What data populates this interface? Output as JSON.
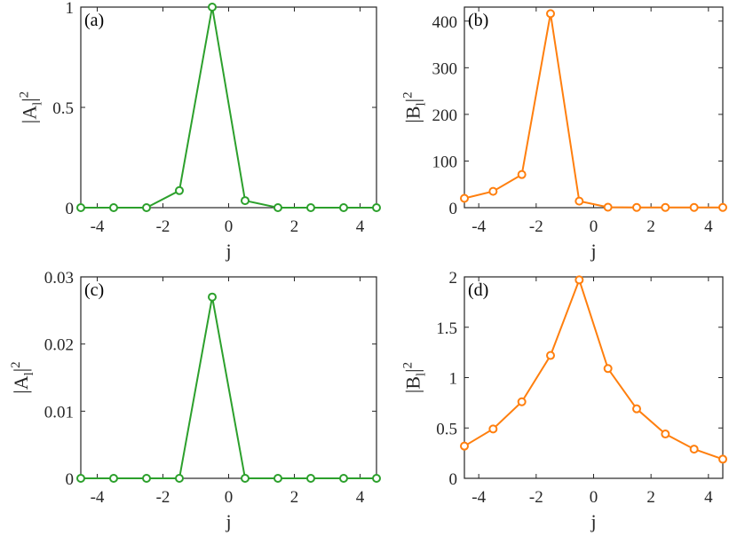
{
  "chart_data": [
    {
      "type": "line",
      "panel_label": "(a)",
      "xlabel": "j",
      "ylabel": "|A_l|^2",
      "ylabel_main": "|A",
      "ylabel_sub": "l",
      "ylabel_close": "|",
      "ylabel_sup": "2",
      "xlim": [
        -4.5,
        4.5
      ],
      "ylim": [
        0,
        1
      ],
      "xticks": [
        -4,
        -2,
        0,
        2,
        4
      ],
      "xtick_labels": [
        "-4",
        "-2",
        "0",
        "2",
        "4"
      ],
      "yticks": [
        0,
        0.5,
        1
      ],
      "ytick_labels": [
        "0",
        "0.5",
        "1"
      ],
      "color": "#2ca02c",
      "marker": "open-circle",
      "grid": false,
      "x": [
        -4.5,
        -3.5,
        -2.5,
        -1.5,
        -0.5,
        0.5,
        1.5,
        2.5,
        3.5,
        4.5
      ],
      "y": [
        0,
        0,
        0,
        0.085,
        1.0,
        0.035,
        0,
        0,
        0,
        0
      ]
    },
    {
      "type": "line",
      "panel_label": "(b)",
      "xlabel": "j",
      "ylabel": "|B_l|^2",
      "ylabel_main": "|B",
      "ylabel_sub": "l",
      "ylabel_close": "|",
      "ylabel_sup": "2",
      "xlim": [
        -4.5,
        4.5
      ],
      "ylim": [
        0,
        430
      ],
      "xticks": [
        -4,
        -2,
        0,
        2,
        4
      ],
      "xtick_labels": [
        "-4",
        "-2",
        "0",
        "2",
        "4"
      ],
      "yticks": [
        0,
        100,
        200,
        300,
        400
      ],
      "ytick_labels": [
        "0",
        "100",
        "200",
        "300",
        "400"
      ],
      "color": "#ff7f0e",
      "marker": "open-circle",
      "grid": false,
      "x": [
        -4.5,
        -3.5,
        -2.5,
        -1.5,
        -0.5,
        0.5,
        1.5,
        2.5,
        3.5,
        4.5
      ],
      "y": [
        20,
        35,
        71,
        416,
        14,
        1,
        0.5,
        0.5,
        0.5,
        0.5
      ]
    },
    {
      "type": "line",
      "panel_label": "(c)",
      "xlabel": "j",
      "ylabel": "|A_l|^2",
      "ylabel_main": "|A",
      "ylabel_sub": "l",
      "ylabel_close": "|",
      "ylabel_sup": "2",
      "xlim": [
        -4.5,
        4.5
      ],
      "ylim": [
        0,
        0.03
      ],
      "xticks": [
        -4,
        -2,
        0,
        2,
        4
      ],
      "xtick_labels": [
        "-4",
        "-2",
        "0",
        "2",
        "4"
      ],
      "yticks": [
        0,
        0.01,
        0.02,
        0.03
      ],
      "ytick_labels": [
        "0",
        "0.01",
        "0.02",
        "0.03"
      ],
      "color": "#2ca02c",
      "marker": "open-circle",
      "grid": false,
      "x": [
        -4.5,
        -3.5,
        -2.5,
        -1.5,
        -0.5,
        0.5,
        1.5,
        2.5,
        3.5,
        4.5
      ],
      "y": [
        0,
        0,
        0,
        0,
        0.027,
        0,
        0,
        0,
        0,
        0
      ]
    },
    {
      "type": "line",
      "panel_label": "(d)",
      "xlabel": "j",
      "ylabel": "|B_l|^2",
      "ylabel_main": "|B",
      "ylabel_sub": "l",
      "ylabel_close": "|",
      "ylabel_sup": "2",
      "xlim": [
        -4.5,
        4.5
      ],
      "ylim": [
        0,
        2
      ],
      "xticks": [
        -4,
        -2,
        0,
        2,
        4
      ],
      "xtick_labels": [
        "-4",
        "-2",
        "0",
        "2",
        "4"
      ],
      "yticks": [
        0,
        0.5,
        1,
        1.5,
        2
      ],
      "ytick_labels": [
        "0",
        "0.5",
        "1",
        "1.5",
        "2"
      ],
      "color": "#ff7f0e",
      "marker": "open-circle",
      "grid": false,
      "x": [
        -4.5,
        -3.5,
        -2.5,
        -1.5,
        -0.5,
        0.5,
        1.5,
        2.5,
        3.5,
        4.5
      ],
      "y": [
        0.32,
        0.49,
        0.76,
        1.22,
        1.97,
        1.09,
        0.69,
        0.44,
        0.29,
        0.19
      ]
    }
  ]
}
